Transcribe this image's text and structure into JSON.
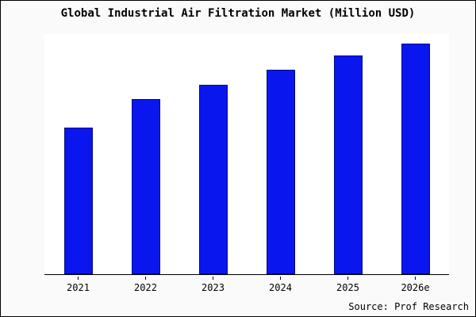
{
  "title": "Global Industrial Air Filtration Market (Million USD)",
  "source": "Source: Prof Research",
  "colors": {
    "bar_fill": "#0a16ee",
    "bar_border": "#000d80",
    "axis": "#000000",
    "frame_border": "#000000"
  },
  "chart_data": {
    "type": "bar",
    "categories": [
      "2021",
      "2022",
      "2023",
      "2024",
      "2025",
      "2026e"
    ],
    "values": [
      61,
      73,
      79,
      85,
      91,
      96
    ],
    "title": "Global Industrial Air Filtration Market (Million USD)",
    "xlabel": "",
    "ylabel": "",
    "ylim": [
      0,
      100
    ],
    "grid": false,
    "legend": "none",
    "annotation": "Source: Prof Research"
  }
}
